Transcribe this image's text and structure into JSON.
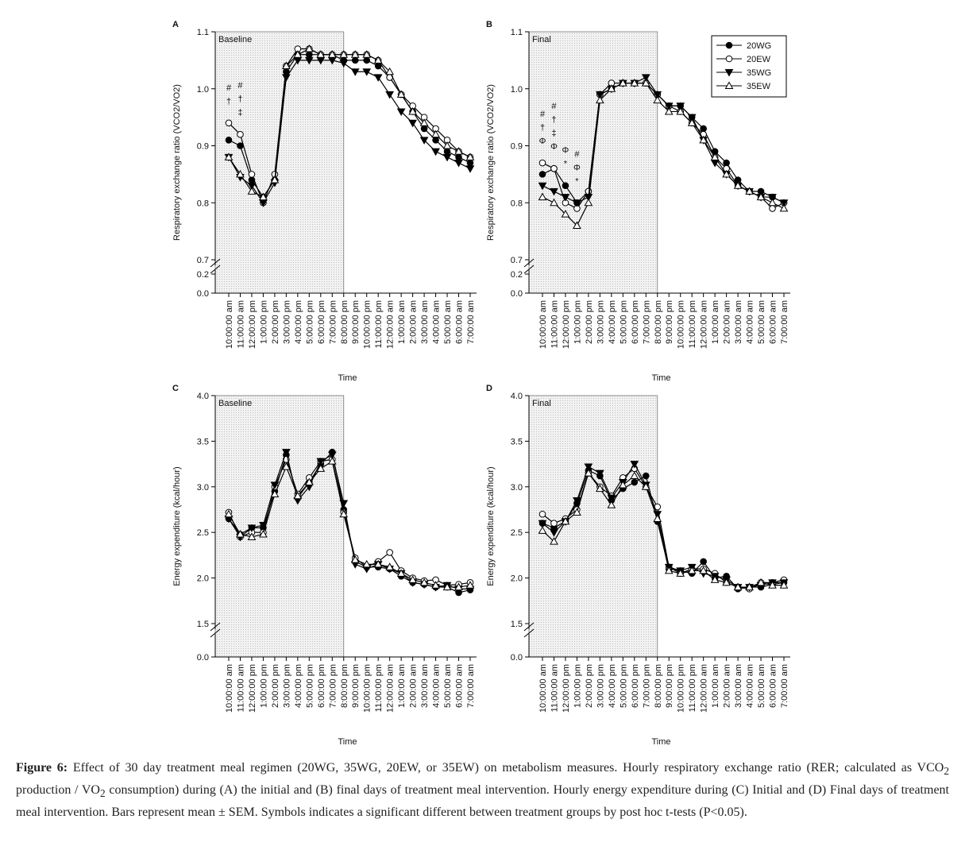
{
  "chart_data": [
    {
      "type": "line",
      "panel": "A",
      "title": "Baseline",
      "ylabel": "Respiratory exchange ratio (VCO2/VO2)",
      "xlabel": "Time",
      "categories": [
        "10:00:00 am",
        "11:00:00 am",
        "12:00:00 pm",
        "1:00:00 pm",
        "2:00:00 pm",
        "3:00:00 pm",
        "4:00:00 pm",
        "5:00:00 pm",
        "6:00:00 pm",
        "7:00:00 pm",
        "8:00:00 pm",
        "9:00:00 pm",
        "10:00:00 pm",
        "11:00:00 pm",
        "12:00:00 am",
        "1:00:00 am",
        "2:00:00 am",
        "3:00:00 am",
        "4:00:00 am",
        "5:00:00 am",
        "6:00:00 am",
        "7:00:00 am"
      ],
      "series": [
        {
          "name": "20WG",
          "color": "#000000",
          "marker": "circle",
          "filled": true,
          "values": [
            0.91,
            0.9,
            0.84,
            0.81,
            0.84,
            1.03,
            1.06,
            1.06,
            1.06,
            1.06,
            1.05,
            1.05,
            1.05,
            1.04,
            1.02,
            0.99,
            0.96,
            0.93,
            0.91,
            0.89,
            0.88,
            0.87
          ]
        },
        {
          "name": "20EW",
          "color": "#000000",
          "marker": "circle",
          "filled": false,
          "values": [
            0.94,
            0.92,
            0.85,
            0.8,
            0.85,
            1.04,
            1.07,
            1.07,
            1.06,
            1.06,
            1.06,
            1.06,
            1.06,
            1.05,
            1.02,
            0.99,
            0.97,
            0.95,
            0.93,
            0.91,
            0.89,
            0.88
          ]
        },
        {
          "name": "35WG",
          "color": "#000000",
          "marker": "triangle-down",
          "filled": true,
          "values": [
            0.88,
            0.845,
            0.83,
            0.8,
            0.835,
            1.02,
            1.05,
            1.05,
            1.05,
            1.05,
            1.045,
            1.03,
            1.03,
            1.02,
            0.99,
            0.96,
            0.94,
            0.91,
            0.89,
            0.88,
            0.87,
            0.86
          ]
        },
        {
          "name": "35EW",
          "color": "#000000",
          "marker": "triangle-up",
          "filled": false,
          "values": [
            0.88,
            0.85,
            0.82,
            0.81,
            0.84,
            1.04,
            1.06,
            1.07,
            1.06,
            1.06,
            1.06,
            1.06,
            1.06,
            1.05,
            1.03,
            0.99,
            0.96,
            0.94,
            0.92,
            0.9,
            0.89,
            0.88
          ]
        }
      ],
      "ylim": [
        0.7,
        1.1
      ],
      "yticks": [
        0.7,
        0.8,
        0.9,
        {
          "value": 1,
          "label": "1.0"
        },
        1.1
      ],
      "axis_break": {
        "ylim": [
          0,
          0.2
        ],
        "yticks": [
          {
            "value": 0,
            "label": "0.0"
          },
          0.2
        ]
      },
      "annotations": [
        {
          "at": "10:00:00 am",
          "text": [
            "#",
            "†"
          ]
        },
        {
          "at": "11:00:00 am",
          "text": [
            "#",
            "†",
            "‡"
          ]
        }
      ]
    },
    {
      "type": "line",
      "panel": "B",
      "title": "Final",
      "ylabel": "Respiratory exchange ratio (VCO2/VO2)",
      "xlabel": "Time",
      "categories": [
        "10:00:00 am",
        "11:00:00 am",
        "12:00:00 pm",
        "1:00:00 pm",
        "2:00:00 pm",
        "3:00:00 pm",
        "4:00:00 pm",
        "5:00:00 pm",
        "6:00:00 pm",
        "7:00:00 pm",
        "8:00:00 pm",
        "9:00:00 pm",
        "10:00:00 pm",
        "11:00:00 pm",
        "12:00:00 am",
        "1:00:00 am",
        "2:00:00 am",
        "3:00:00 am",
        "4:00:00 am",
        "5:00:00 am",
        "6:00:00 am",
        "7:00:00 am"
      ],
      "series": [
        {
          "name": "20WG",
          "color": "#000000",
          "marker": "circle",
          "filled": true,
          "values": [
            0.85,
            0.86,
            0.83,
            0.8,
            0.82,
            0.99,
            1.0,
            1.01,
            1.01,
            1.01,
            0.99,
            0.97,
            0.97,
            0.95,
            0.93,
            0.89,
            0.87,
            0.84,
            0.82,
            0.82,
            0.81,
            0.8
          ]
        },
        {
          "name": "20EW",
          "color": "#000000",
          "marker": "circle",
          "filled": false,
          "values": [
            0.87,
            0.86,
            0.8,
            0.79,
            0.82,
            0.99,
            1.01,
            1.01,
            1.01,
            1.01,
            0.99,
            0.97,
            0.96,
            0.94,
            0.92,
            0.88,
            0.86,
            0.83,
            0.82,
            0.81,
            0.79,
            0.8
          ]
        },
        {
          "name": "35WG",
          "color": "#000000",
          "marker": "triangle-down",
          "filled": true,
          "values": [
            0.83,
            0.82,
            0.81,
            0.8,
            0.81,
            0.99,
            1.0,
            1.01,
            1.01,
            1.02,
            0.99,
            0.97,
            0.97,
            0.95,
            0.91,
            0.87,
            0.85,
            0.83,
            0.82,
            0.81,
            0.81,
            0.8
          ]
        },
        {
          "name": "35EW",
          "color": "#000000",
          "marker": "triangle-up",
          "filled": false,
          "values": [
            0.81,
            0.8,
            0.78,
            0.76,
            0.8,
            0.98,
            1.0,
            1.01,
            1.01,
            1.01,
            0.98,
            0.96,
            0.96,
            0.94,
            0.91,
            0.88,
            0.85,
            0.83,
            0.82,
            0.81,
            0.8,
            0.79
          ]
        }
      ],
      "ylim": [
        0.7,
        1.1
      ],
      "yticks": [
        0.7,
        0.8,
        0.9,
        {
          "value": 1,
          "label": "1.0"
        },
        1.1
      ],
      "axis_break": {
        "ylim": [
          0,
          0.2
        ],
        "yticks": [
          {
            "value": 0,
            "label": "0.0"
          },
          0.2
        ]
      },
      "legend": "upper right",
      "annotations": [
        {
          "at": "10:00:00 am",
          "text": [
            "#",
            "†",
            "Φ"
          ]
        },
        {
          "at": "11:00:00 am",
          "text": [
            "#",
            "†",
            "‡",
            "Φ"
          ]
        },
        {
          "at": "12:00:00 pm",
          "text": [
            "Φ",
            "*"
          ]
        },
        {
          "at": "1:00:00 pm",
          "text": [
            "#",
            "Φ",
            "*"
          ]
        }
      ]
    },
    {
      "type": "line",
      "panel": "C",
      "title": "Baseline",
      "ylabel": "Energy expenditure (kcal/hour)",
      "xlabel": "Time",
      "categories": [
        "10:00:00 am",
        "11:00:00 am",
        "12:00:00 pm",
        "1:00:00 pm",
        "2:00:00 pm",
        "3:00:00 pm",
        "4:00:00 pm",
        "5:00:00 pm",
        "6:00:00 pm",
        "7:00:00 pm",
        "8:00:00 pm",
        "9:00:00 pm",
        "10:00:00 pm",
        "11:00:00 pm",
        "12:00:00 am",
        "1:00:00 am",
        "2:00:00 am",
        "3:00:00 am",
        "4:00:00 am",
        "5:00:00 am",
        "6:00:00 am",
        "7:00:00 am"
      ],
      "series": [
        {
          "name": "20WG",
          "color": "#000000",
          "marker": "circle",
          "filled": true,
          "values": [
            2.65,
            2.48,
            2.55,
            2.55,
            2.95,
            3.35,
            2.88,
            3.05,
            3.25,
            3.38,
            2.75,
            2.18,
            2.12,
            2.12,
            2.1,
            2.02,
            1.95,
            1.93,
            1.9,
            1.9,
            1.84,
            1.87
          ]
        },
        {
          "name": "20EW",
          "color": "#000000",
          "marker": "circle",
          "filled": false,
          "values": [
            2.72,
            2.45,
            2.5,
            2.5,
            3.0,
            3.3,
            2.92,
            3.1,
            3.28,
            3.3,
            2.72,
            2.22,
            2.12,
            2.18,
            2.28,
            2.08,
            2.0,
            1.97,
            1.98,
            1.92,
            1.93,
            1.95
          ]
        },
        {
          "name": "35WG",
          "color": "#000000",
          "marker": "triangle-down",
          "filled": true,
          "values": [
            2.65,
            2.45,
            2.55,
            2.58,
            3.02,
            3.38,
            2.85,
            3.0,
            3.28,
            3.35,
            2.82,
            2.15,
            2.1,
            2.15,
            2.1,
            2.05,
            1.95,
            1.93,
            1.9,
            1.92,
            1.88,
            1.88
          ]
        },
        {
          "name": "35EW",
          "color": "#000000",
          "marker": "triangle-up",
          "filled": false,
          "values": [
            2.7,
            2.48,
            2.45,
            2.48,
            2.92,
            3.22,
            2.9,
            3.05,
            3.2,
            3.28,
            2.7,
            2.2,
            2.15,
            2.15,
            2.12,
            2.05,
            1.98,
            1.95,
            1.92,
            1.9,
            1.9,
            1.92
          ]
        }
      ],
      "ylim": [
        1.5,
        4
      ],
      "yticks": [
        1.5,
        {
          "value": 2,
          "label": "2.0"
        },
        2.5,
        {
          "value": 3,
          "label": "3.0"
        },
        3.5,
        {
          "value": 4,
          "label": "4.0"
        }
      ],
      "axis_break": {
        "yticks": [
          {
            "value": 0,
            "label": "0.0"
          }
        ]
      }
    },
    {
      "type": "line",
      "panel": "D",
      "title": "Final",
      "ylabel": "Energy expenditure (kcal/hour)",
      "xlabel": "Time",
      "categories": [
        "10:00:00 am",
        "11:00:00 am",
        "12:00:00 pm",
        "1:00:00 pm",
        "2:00:00 pm",
        "3:00:00 pm",
        "4:00:00 pm",
        "5:00:00 pm",
        "6:00:00 pm",
        "7:00:00 pm",
        "8:00:00 pm",
        "9:00:00 pm",
        "10:00:00 pm",
        "11:00:00 pm",
        "12:00:00 am",
        "1:00:00 am",
        "2:00:00 am",
        "3:00:00 am",
        "4:00:00 am",
        "5:00:00 am",
        "6:00:00 am",
        "7:00:00 am"
      ],
      "series": [
        {
          "name": "20WG",
          "color": "#000000",
          "marker": "circle",
          "filled": true,
          "values": [
            2.6,
            2.55,
            2.62,
            2.82,
            3.18,
            3.12,
            2.85,
            2.98,
            3.05,
            3.12,
            2.62,
            2.1,
            2.08,
            2.05,
            2.18,
            2.0,
            2.02,
            1.88,
            1.9,
            1.9,
            1.93,
            1.95
          ]
        },
        {
          "name": "20EW",
          "color": "#000000",
          "marker": "circle",
          "filled": false,
          "values": [
            2.7,
            2.6,
            2.65,
            2.75,
            3.15,
            3.0,
            2.9,
            3.1,
            3.2,
            3.0,
            2.78,
            2.12,
            2.05,
            2.1,
            2.1,
            2.05,
            1.95,
            1.9,
            1.88,
            1.95,
            1.95,
            1.98
          ]
        },
        {
          "name": "35WG",
          "color": "#000000",
          "marker": "triangle-down",
          "filled": true,
          "values": [
            2.6,
            2.5,
            2.62,
            2.85,
            3.22,
            3.15,
            2.88,
            3.05,
            3.25,
            3.02,
            2.7,
            2.12,
            2.08,
            2.12,
            2.05,
            2.02,
            1.98,
            1.9,
            1.9,
            1.92,
            1.95,
            1.95
          ]
        },
        {
          "name": "35EW",
          "color": "#000000",
          "marker": "triangle-up",
          "filled": false,
          "values": [
            2.52,
            2.4,
            2.62,
            2.72,
            3.15,
            2.98,
            2.8,
            3.02,
            3.12,
            3.0,
            2.65,
            2.08,
            2.05,
            2.08,
            2.08,
            1.98,
            1.95,
            1.9,
            1.9,
            1.95,
            1.92,
            1.92
          ]
        }
      ],
      "ylim": [
        1.5,
        4
      ],
      "yticks": [
        1.5,
        {
          "value": 2,
          "label": "2.0"
        },
        2.5,
        {
          "value": 3,
          "label": "3.0"
        },
        3.5,
        {
          "value": 4,
          "label": "4.0"
        }
      ],
      "axis_break": {
        "yticks": [
          {
            "value": 0,
            "label": "0.0"
          }
        ]
      }
    }
  ],
  "caption": {
    "label": "Figure 6:",
    "text": [
      " Effect of 30 day treatment meal regimen (20WG, 35WG, 20EW, or 35EW) on metabolism measures. Hourly respiratory exchange ratio (RER; calculated as VCO",
      "2",
      " production / VO",
      "2",
      " consumption) during (A) the initial and (B) final days of treatment meal intervention. Hourly energy expenditure during (C) Initial and (D) Final days of treatment meal intervention. Bars represent mean ± SEM. Symbols indicates a significant different between treatment groups by post hoc t-tests (P<0.05)."
    ]
  }
}
